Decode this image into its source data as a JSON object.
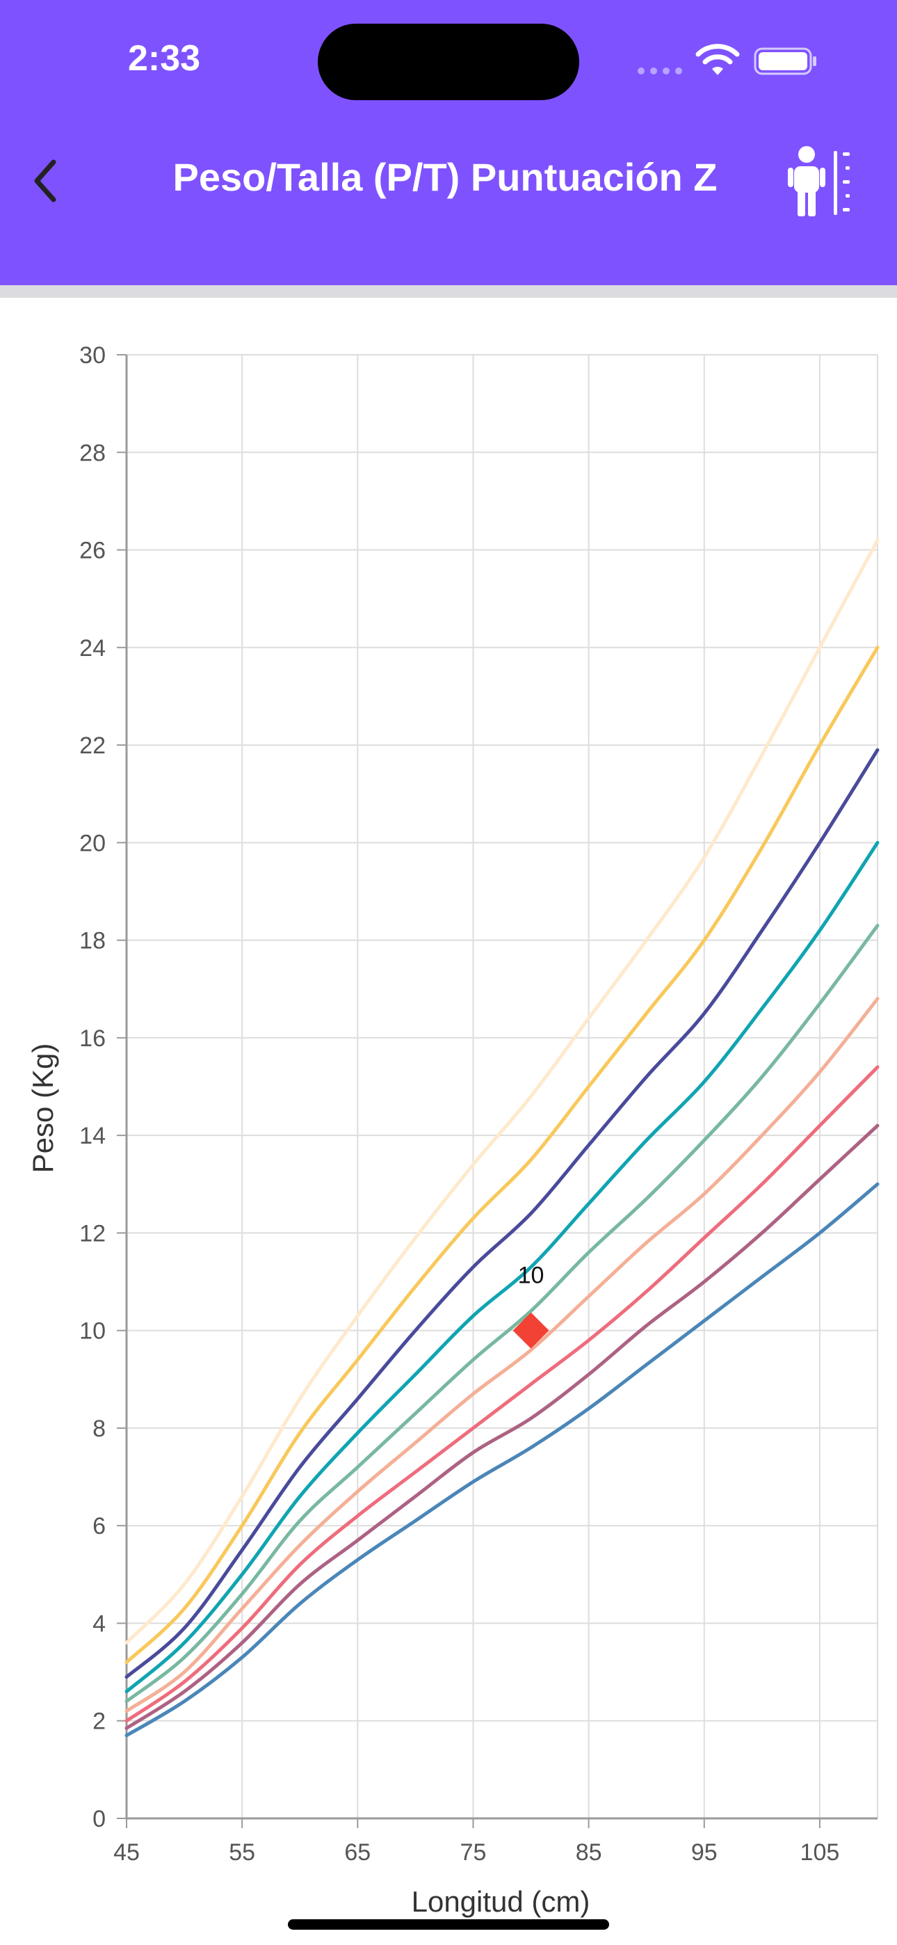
{
  "status_bar": {
    "time": "2:33"
  },
  "header": {
    "title": "Peso/Talla (P/T) Puntuación Z",
    "back_icon": "chevron-left-icon",
    "action_icon": "child-height-icon",
    "background": "#7f52ff"
  },
  "chart_data": {
    "type": "line",
    "xlabel": "Longitud (cm)",
    "ylabel": "Peso (Kg)",
    "xlim": [
      45,
      110
    ],
    "ylim": [
      0,
      30
    ],
    "x_ticks": [
      "45",
      "55",
      "65",
      "75",
      "85",
      "95",
      "105"
    ],
    "y_ticks": [
      "0",
      "2",
      "4",
      "6",
      "8",
      "10",
      "12",
      "14",
      "16",
      "18",
      "20",
      "22",
      "24",
      "26",
      "28",
      "30"
    ],
    "grid": true,
    "x": [
      45,
      50,
      55,
      60,
      65,
      70,
      75,
      80,
      85,
      90,
      95,
      100,
      105,
      110
    ],
    "series": [
      {
        "color": "#4a86b8",
        "values": [
          1.7,
          2.4,
          3.3,
          4.4,
          5.3,
          6.1,
          6.9,
          7.6,
          8.4,
          9.3,
          10.2,
          11.1,
          12.0,
          13.0
        ]
      },
      {
        "color": "#ad6283",
        "values": [
          1.85,
          2.6,
          3.6,
          4.8,
          5.7,
          6.6,
          7.5,
          8.2,
          9.1,
          10.1,
          11.0,
          12.0,
          13.1,
          14.2
        ]
      },
      {
        "color": "#ee6c7c",
        "values": [
          2.0,
          2.8,
          3.9,
          5.2,
          6.2,
          7.1,
          8.0,
          8.9,
          9.8,
          10.8,
          11.9,
          13.0,
          14.2,
          15.4
        ]
      },
      {
        "color": "#f4af96",
        "values": [
          2.2,
          3.0,
          4.3,
          5.6,
          6.7,
          7.7,
          8.7,
          9.6,
          10.7,
          11.8,
          12.8,
          14.0,
          15.3,
          16.8
        ]
      },
      {
        "color": "#78b8a0",
        "values": [
          2.4,
          3.3,
          4.6,
          6.1,
          7.2,
          8.3,
          9.4,
          10.4,
          11.6,
          12.7,
          13.9,
          15.2,
          16.7,
          18.3
        ]
      },
      {
        "color": "#10a4b2",
        "values": [
          2.6,
          3.6,
          5.0,
          6.6,
          7.9,
          9.1,
          10.3,
          11.3,
          12.6,
          13.9,
          15.1,
          16.6,
          18.2,
          20.0
        ]
      },
      {
        "color": "#4a4a9c",
        "values": [
          2.9,
          3.9,
          5.5,
          7.2,
          8.6,
          10.0,
          11.3,
          12.4,
          13.8,
          15.2,
          16.5,
          18.2,
          20.0,
          21.9
        ]
      },
      {
        "color": "#f8c85a",
        "values": [
          3.2,
          4.3,
          6.0,
          7.9,
          9.4,
          10.9,
          12.3,
          13.5,
          15.0,
          16.5,
          18.0,
          19.9,
          22.0,
          24.0
        ]
      },
      {
        "color": "#ffe9cc",
        "values": [
          3.6,
          4.8,
          6.6,
          8.6,
          10.3,
          11.9,
          13.4,
          14.8,
          16.4,
          18.0,
          19.7,
          21.8,
          24.0,
          26.2
        ]
      }
    ],
    "point": {
      "x": 80,
      "y": 10,
      "label": "10",
      "color": "#f24236",
      "marker": "diamond"
    }
  }
}
